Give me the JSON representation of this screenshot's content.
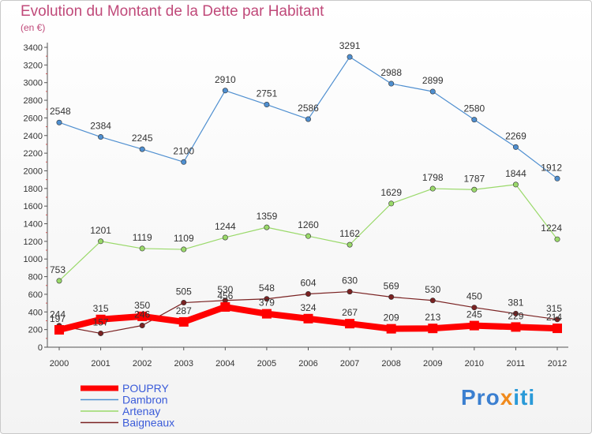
{
  "chart_data": {
    "type": "line",
    "title": "Evolution du Montant de la Dette par Habitant",
    "subtitle": "(en €)",
    "xlabel": "",
    "ylabel": "",
    "ylim": [
      0,
      3400
    ],
    "yticks": [
      0,
      200,
      400,
      600,
      800,
      1000,
      1200,
      1400,
      1600,
      1800,
      2000,
      2200,
      2400,
      2600,
      2800,
      3000,
      3200,
      3400
    ],
    "categories": [
      "2000",
      "2001",
      "2002",
      "2003",
      "2004",
      "2005",
      "2006",
      "2007",
      "2008",
      "2009",
      "2010",
      "2011",
      "2012"
    ],
    "grid": false,
    "legend_position": "bottom-left",
    "series": [
      {
        "name": "POUPRY",
        "color": "#ff0000",
        "values": [
          197,
          315,
          350,
          287,
          456,
          379,
          324,
          267,
          209,
          213,
          245,
          229,
          214
        ],
        "labels": [
          "197",
          "315",
          "350",
          "287",
          "456",
          "379",
          "324",
          "267",
          "209",
          "213",
          "245",
          "229",
          "214"
        ]
      },
      {
        "name": "Dambron",
        "color": "#4f8fd0",
        "values": [
          2548,
          2384,
          2245,
          2100,
          2910,
          2751,
          2586,
          3291,
          2988,
          2899,
          2580,
          2269,
          1912
        ],
        "labels": [
          "2548",
          "2384",
          "2245",
          "2100",
          "2910",
          "2751",
          "2586",
          "3291",
          "2988",
          "2899",
          "2580",
          "2269",
          "1912"
        ]
      },
      {
        "name": "Artenay",
        "color": "#9ad96a",
        "values": [
          753,
          1201,
          1119,
          1109,
          1244,
          1359,
          1260,
          1162,
          1629,
          1798,
          1787,
          1844,
          1224
        ],
        "labels": [
          "753",
          "1201",
          "1119",
          "1109",
          "1244",
          "1359",
          "1260",
          "1162",
          "1629",
          "1798",
          "1787",
          "1844",
          "1224"
        ]
      },
      {
        "name": "Baigneaux",
        "color": "#7a2222",
        "values": [
          244,
          157,
          246,
          505,
          530,
          548,
          604,
          630,
          569,
          530,
          450,
          381,
          315
        ],
        "labels": [
          "244",
          "157",
          "246",
          "505",
          "530",
          "548",
          "604",
          "630",
          "569",
          "530",
          "450",
          "381",
          "315"
        ]
      }
    ]
  },
  "logo": {
    "part1": "Pro",
    "part2": "x",
    "part3": "iti"
  }
}
